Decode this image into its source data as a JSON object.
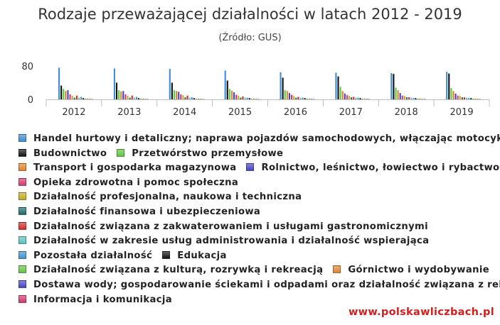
{
  "chart_data": {
    "type": "bar",
    "title": "Rodzaje przeważającej działalności w latach 2012 - 2019",
    "subtitle": "(Źródło: GUS)",
    "xlabel": "",
    "ylabel": "",
    "ylim": [
      0,
      80
    ],
    "y_ticks": [
      "0",
      "80"
    ],
    "grid": false,
    "legend_position": "bottom",
    "categories": [
      "2012",
      "2013",
      "2014",
      "2015",
      "2016",
      "2017",
      "2018",
      "2019"
    ],
    "series": [
      {
        "name": "Handel hurtowy i detaliczny; naprawa pojazdów samochodowych, włączając motocykle",
        "color": "#3e8ed0",
        "values": [
          76,
          74,
          73,
          69,
          65,
          64,
          63,
          66
        ]
      },
      {
        "name": "Budownictwo",
        "color": "#111111",
        "values": [
          33,
          40,
          40,
          45,
          52,
          55,
          61,
          62
        ]
      },
      {
        "name": "Przetwórstwo przemysłowe",
        "color": "#5fc63f",
        "values": [
          25,
          22,
          22,
          25,
          22,
          30,
          28,
          27
        ]
      },
      {
        "name": "Transport i gospodarka magazynowa",
        "color": "#e2832a",
        "values": [
          20,
          19,
          20,
          21,
          20,
          20,
          22,
          20
        ]
      },
      {
        "name": "Rolnictwo, leśnictwo, łowiectwo i rybactwo",
        "color": "#4444c4",
        "values": [
          22,
          20,
          18,
          17,
          15,
          14,
          15,
          14
        ]
      },
      {
        "name": "Opieka zdrowotna i pomoc społeczna",
        "color": "#d33a73",
        "values": [
          12,
          12,
          12,
          11,
          11,
          10,
          9,
          9
        ]
      },
      {
        "name": "Działalność profesjonalna, naukowa i techniczna",
        "color": "#c0ad21",
        "values": [
          9,
          9,
          10,
          9,
          8,
          8,
          8,
          8
        ]
      },
      {
        "name": "Działalność finansowa i ubezpieczeniowa",
        "color": "#1b6b67",
        "values": [
          4,
          4,
          5,
          4,
          4,
          5,
          5,
          5
        ]
      },
      {
        "name": "Działalność związana z zakwaterowaniem i usługami gastronomicznymi",
        "color": "#cf2b2b",
        "values": [
          9,
          9,
          9,
          7,
          6,
          6,
          5,
          5
        ]
      },
      {
        "name": "Działalność w zakresie usług administrowania i działalność wspierająca",
        "color": "#59c2bc",
        "values": [
          4,
          4,
          4,
          4,
          4,
          4,
          4,
          4
        ]
      },
      {
        "name": "Pozostała działalność",
        "color": "#4390cf",
        "values": [
          6,
          6,
          5,
          4,
          4,
          4,
          3,
          3
        ]
      },
      {
        "name": "Edukacja",
        "color": "#111111",
        "values": [
          3,
          3,
          3,
          3,
          3,
          3,
          3,
          3
        ]
      },
      {
        "name": "Działalność związana z kulturą, rozrywką i rekreacją",
        "color": "#64c445",
        "values": [
          2,
          2,
          2,
          2,
          2,
          2,
          2,
          2
        ]
      },
      {
        "name": "Górnictwo i wydobywanie",
        "color": "#e0832e",
        "values": [
          2,
          2,
          2,
          2,
          2,
          2,
          2,
          2
        ]
      },
      {
        "name": "Dostawa wody; gospodarowanie ściekami i odpadami oraz działalność związana z rekultywacją",
        "color": "#4545c6",
        "values": [
          1,
          1,
          1,
          1,
          1,
          1,
          1,
          1
        ]
      },
      {
        "name": "Informacja i komunikacja",
        "color": "#d33767",
        "values": [
          1,
          1,
          1,
          1,
          1,
          1,
          1,
          1
        ]
      }
    ],
    "legend_rows": [
      [
        0
      ],
      [
        1,
        2
      ],
      [
        3,
        4
      ],
      [
        5
      ],
      [
        6
      ],
      [
        7
      ],
      [
        8
      ],
      [
        9
      ],
      [
        10,
        11
      ],
      [
        12,
        13
      ],
      [
        14
      ],
      [
        15
      ]
    ]
  },
  "watermark": "www.polskawliczbach.pl"
}
